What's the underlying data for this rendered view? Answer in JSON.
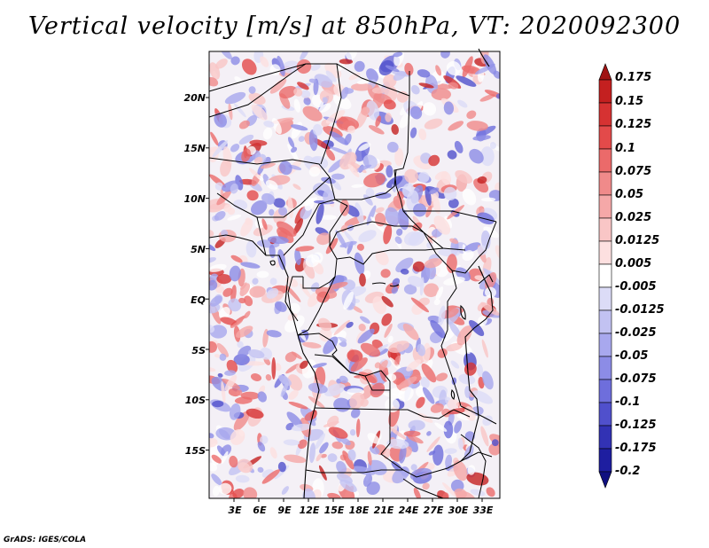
{
  "title": "Vertical velocity [m/s] at 850hPa, VT: 2020092300",
  "credit": "GrADS: IGES/COLA",
  "map": {
    "lat_labels": [
      "20N",
      "15N",
      "10N",
      "5N",
      "EQ",
      "5S",
      "10S",
      "15S"
    ],
    "lon_labels": [
      "3E",
      "6E",
      "9E",
      "12E",
      "15E",
      "18E",
      "21E",
      "24E",
      "27E",
      "30E",
      "33E"
    ],
    "extent": {
      "lon_min": 0,
      "lon_max": 35,
      "lat_min": -20,
      "lat_max": 25
    }
  },
  "colorbar": {
    "labels": [
      "0.175",
      "0.15",
      "0.125",
      "0.1",
      "0.075",
      "0.05",
      "0.025",
      "0.0125",
      "0.005",
      "-0.005",
      "-0.0125",
      "-0.025",
      "-0.05",
      "-0.075",
      "-0.1",
      "-0.125",
      "-0.175",
      "-0.2"
    ],
    "colors": [
      "#a01414",
      "#c42020",
      "#d63232",
      "#e34a4a",
      "#eb6a6a",
      "#f08a8a",
      "#f5a8a8",
      "#f9c6c6",
      "#fde0e0",
      "#ffffff",
      "#dcdcf7",
      "#c2c2f2",
      "#a8a8ee",
      "#8c8ce6",
      "#6e6edc",
      "#5050cc",
      "#3232b4",
      "#1e1ea0",
      "#101080"
    ]
  }
}
